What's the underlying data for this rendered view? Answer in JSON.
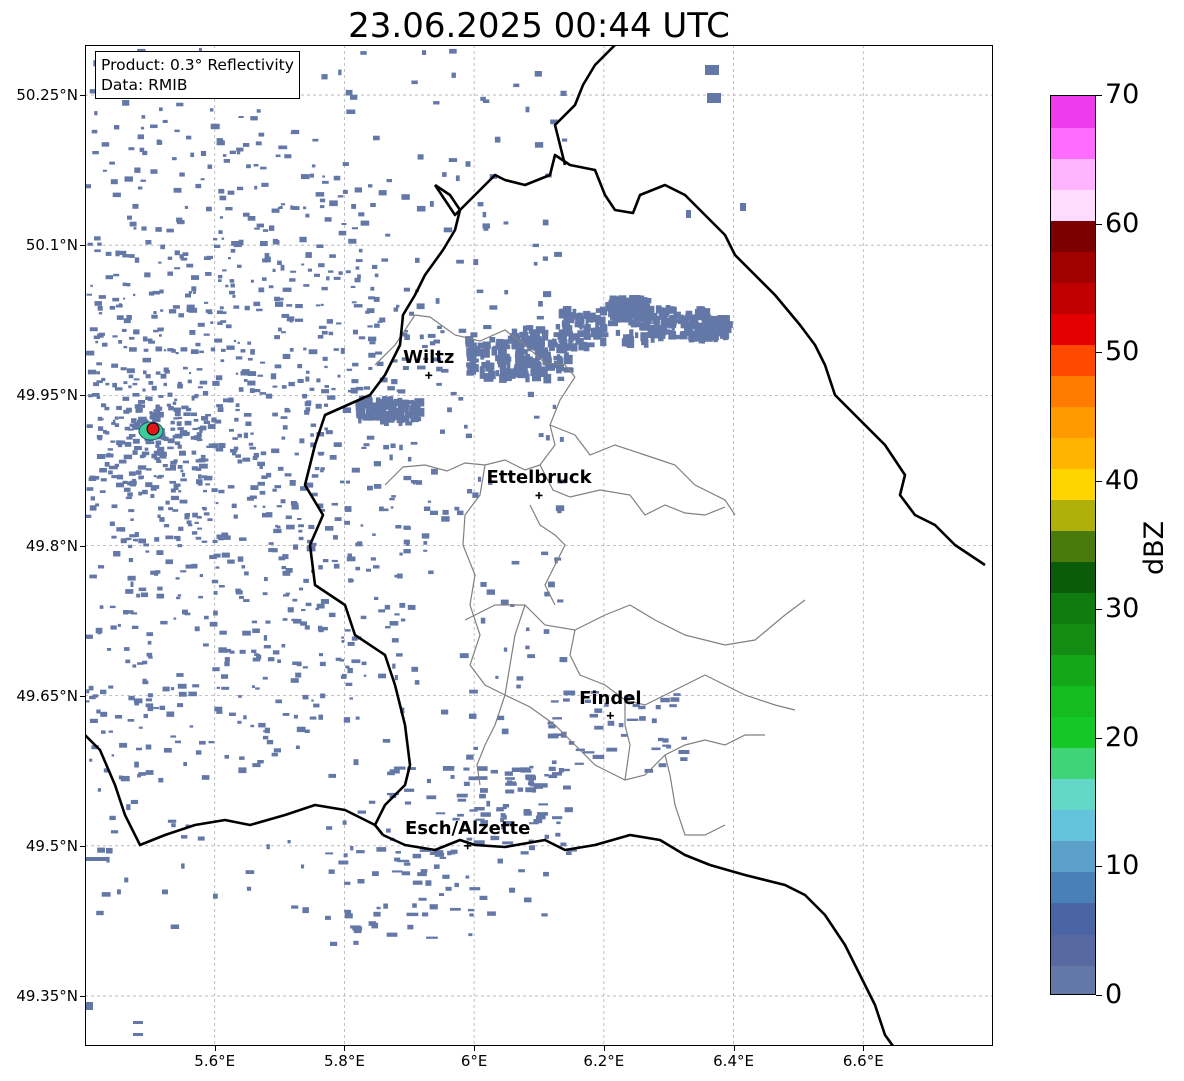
{
  "title": "23.06.2025 00:44 UTC",
  "info_box": {
    "product": "Product: 0.3° Reflectivity",
    "data": "Data: RMIB"
  },
  "lat_labels": [
    "50.25°N",
    "50.1°N",
    "49.95°N",
    "49.8°N",
    "49.65°N",
    "49.5°N",
    "49.35°N"
  ],
  "lon_labels": [
    "5.6°E",
    "5.8°E",
    "6°E",
    "6.2°E",
    "6.4°E",
    "6.6°E"
  ],
  "cities": [
    {
      "name": "Wiltz",
      "lon": 5.93,
      "lat": 49.97
    },
    {
      "name": "Ettelbruck",
      "lon": 6.1,
      "lat": 49.85
    },
    {
      "name": "Findel",
      "lon": 6.21,
      "lat": 49.63
    },
    {
      "name": "Esch/Alzette",
      "lon": 5.99,
      "lat": 49.5
    }
  ],
  "radar_site": {
    "lon": 5.505,
    "lat": 49.915
  },
  "colorbar": {
    "unit": "dBZ",
    "min": 0,
    "max": 70,
    "tick_labels": [
      "0",
      "10",
      "20",
      "30",
      "40",
      "50",
      "60",
      "70"
    ],
    "colors": [
      "#6478a8",
      "#5868a0",
      "#4a64a4",
      "#4a80b8",
      "#5aa0c8",
      "#64c4dc",
      "#64d8c8",
      "#40d478",
      "#14c828",
      "#14bc20",
      "#14a818",
      "#148c14",
      "#0e7c0e",
      "#0a5c0a",
      "#487a0c",
      "#b0b00a",
      "#ffd400",
      "#ffb400",
      "#ff9a00",
      "#ff7c00",
      "#ff4800",
      "#e40000",
      "#c00000",
      "#a00000",
      "#7c0000",
      "#ffdcff",
      "#ffb4ff",
      "#ff6cff",
      "#ec3cec"
    ]
  },
  "echo_color": "#6478a8"
}
